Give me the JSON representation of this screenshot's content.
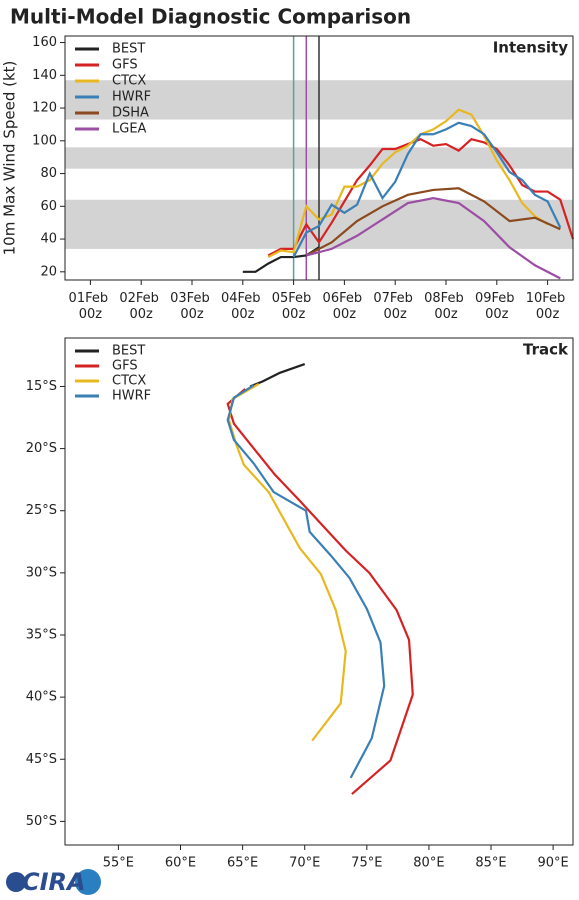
{
  "title": "Multi-Model Diagnostic Comparison",
  "logo": "CIRA",
  "chart_data": [
    {
      "type": "line",
      "panel_label": "Intensity",
      "ylabel": "10m Max Wind Speed (kt)",
      "xlim": [
        "31Jan 12z",
        "10Feb 12z"
      ],
      "xticks": [
        "01Feb 00z",
        "02Feb 00z",
        "03Feb 00z",
        "04Feb 00z",
        "05Feb 00z",
        "06Feb 00z",
        "07Feb 00z",
        "08Feb 00z",
        "09Feb 00z",
        "10Feb 00z"
      ],
      "ylim": [
        15,
        164
      ],
      "yticks": [
        20,
        40,
        60,
        80,
        100,
        120,
        140,
        160
      ],
      "bands": [
        [
          34,
          64
        ],
        [
          83,
          96
        ],
        [
          113,
          137
        ]
      ],
      "band_color": "#d3d3d3",
      "vlines": [
        {
          "x": "05Feb 00z",
          "color": "#5f9ea0"
        },
        {
          "x": "05Feb 06z",
          "color": "#9b4ea3"
        },
        {
          "x": "05Feb 12z",
          "color": "#333333"
        }
      ],
      "legend": "upper left",
      "series": [
        {
          "name": "BEST",
          "color": "#222222",
          "x": [
            "04Feb 00z",
            "04Feb 06z",
            "04Feb 12z",
            "04Feb 18z",
            "05Feb 00z",
            "05Feb 06z",
            "05Feb 12z"
          ],
          "values": [
            20,
            20,
            25,
            29,
            29,
            30,
            35
          ]
        },
        {
          "name": "GFS",
          "color": "#d62222",
          "x": [
            "04Feb 12z",
            "04Feb 18z",
            "05Feb 00z",
            "05Feb 06z",
            "05Feb 12z",
            "05Feb 18z",
            "06Feb 00z",
            "06Feb 06z",
            "06Feb 12z",
            "06Feb 18z",
            "07Feb 00z",
            "07Feb 06z",
            "07Feb 12z",
            "07Feb 18z",
            "08Feb 00z",
            "08Feb 06z",
            "08Feb 12z",
            "08Feb 18z",
            "09Feb 00z",
            "09Feb 06z",
            "09Feb 12z",
            "09Feb 18z",
            "10Feb 00z",
            "10Feb 06z",
            "10Feb 12z"
          ],
          "values": [
            30,
            34,
            34,
            49,
            38,
            50,
            63,
            76,
            85,
            95,
            95,
            98,
            101,
            97,
            98,
            94,
            101,
            99,
            95,
            85,
            73,
            69,
            69,
            64,
            40
          ]
        },
        {
          "name": "CTCX",
          "color": "#e8b820",
          "x": [
            "04Feb 12z",
            "04Feb 18z",
            "05Feb 00z",
            "05Feb 06z",
            "05Feb 12z",
            "05Feb 18z",
            "06Feb 00z",
            "06Feb 06z",
            "06Feb 12z",
            "06Feb 18z",
            "07Feb 00z",
            "07Feb 06z",
            "07Feb 12z",
            "07Feb 18z",
            "08Feb 00z",
            "08Feb 06z",
            "08Feb 12z",
            "08Feb 18z",
            "09Feb 00z",
            "09Feb 06z",
            "09Feb 12z",
            "09Feb 18z",
            "10Feb 00z"
          ],
          "values": [
            29,
            33,
            32,
            60,
            52,
            55,
            72,
            72,
            76,
            86,
            93,
            97,
            104,
            107,
            112,
            119,
            116,
            103,
            88,
            76,
            62,
            54,
            49
          ]
        },
        {
          "name": "HWRF",
          "color": "#3a7fb5",
          "x": [
            "05Feb 00z",
            "05Feb 06z",
            "05Feb 12z",
            "05Feb 18z",
            "06Feb 00z",
            "06Feb 06z",
            "06Feb 12z",
            "06Feb 18z",
            "07Feb 00z",
            "07Feb 06z",
            "07Feb 12z",
            "07Feb 18z",
            "08Feb 00z",
            "08Feb 06z",
            "08Feb 12z",
            "08Feb 18z",
            "09Feb 00z",
            "09Feb 06z",
            "09Feb 12z",
            "09Feb 18z",
            "10Feb 00z",
            "10Feb 06z"
          ],
          "values": [
            29,
            44,
            48,
            61,
            56,
            61,
            80,
            65,
            75,
            92,
            104,
            104,
            107,
            111,
            109,
            104,
            93,
            81,
            76,
            67,
            63,
            47
          ]
        },
        {
          "name": "DSHA",
          "color": "#8b4a1f",
          "x": [
            "05Feb 06z",
            "05Feb 18z",
            "06Feb 06z",
            "06Feb 18z",
            "07Feb 06z",
            "07Feb 18z",
            "08Feb 06z",
            "08Feb 18z",
            "09Feb 06z",
            "09Feb 18z",
            "10Feb 06z"
          ],
          "values": [
            30,
            38,
            51,
            60,
            67,
            70,
            71,
            63,
            51,
            53,
            46
          ]
        },
        {
          "name": "LGEA",
          "color": "#9b4ea3",
          "x": [
            "05Feb 06z",
            "05Feb 18z",
            "06Feb 06z",
            "06Feb 18z",
            "07Feb 06z",
            "07Feb 18z",
            "08Feb 06z",
            "08Feb 18z",
            "09Feb 06z",
            "09Feb 18z",
            "10Feb 06z"
          ],
          "values": [
            30,
            34,
            42,
            52,
            62,
            65,
            62,
            51,
            35,
            24,
            16
          ]
        }
      ]
    },
    {
      "type": "track",
      "panel_label": "Track",
      "xlim": [
        50.7,
        91.6
      ],
      "ylim": [
        -51.9,
        -11.1
      ],
      "xticks": [
        {
          "value": 55,
          "label": "55°E"
        },
        {
          "value": 60,
          "label": "60°E"
        },
        {
          "value": 65,
          "label": "65°E"
        },
        {
          "value": 70,
          "label": "70°E"
        },
        {
          "value": 75,
          "label": "75°E"
        },
        {
          "value": 80,
          "label": "80°E"
        },
        {
          "value": 85,
          "label": "85°E"
        },
        {
          "value": 90,
          "label": "90°E"
        }
      ],
      "yticks": [
        {
          "value": -15,
          "label": "15°S"
        },
        {
          "value": -20,
          "label": "20°S"
        },
        {
          "value": -25,
          "label": "25°S"
        },
        {
          "value": -30,
          "label": "30°S"
        },
        {
          "value": -35,
          "label": "35°S"
        },
        {
          "value": -40,
          "label": "40°S"
        },
        {
          "value": -45,
          "label": "45°S"
        },
        {
          "value": -50,
          "label": "50°S"
        }
      ],
      "legend": "upper left",
      "series": [
        {
          "name": "BEST",
          "color": "#222222",
          "x": [
            70.0,
            68.0,
            66.6,
            65.6
          ],
          "values": [
            -13.2,
            -13.9,
            -14.6,
            -15.0
          ]
        },
        {
          "name": "GFS",
          "color": "#d62222",
          "x": [
            65.2,
            63.8,
            64.3,
            67.6,
            69.6,
            73.3,
            75.2,
            77.4,
            78.4,
            78.7,
            76.9,
            73.8
          ],
          "values": [
            -15.2,
            -16.4,
            -18.0,
            -22.1,
            -24.2,
            -28.2,
            -30.0,
            -33.0,
            -35.4,
            -39.8,
            -45.1,
            -47.8
          ]
        },
        {
          "name": "CTCX",
          "color": "#e8b820",
          "x": [
            66.3,
            64.2,
            63.9,
            64.5,
            65.1,
            67.1,
            69.6,
            71.3,
            72.5,
            73.3,
            72.9,
            70.6
          ],
          "values": [
            -14.8,
            -16.0,
            -17.7,
            -19.7,
            -21.3,
            -23.5,
            -28.0,
            -30.1,
            -33.0,
            -36.3,
            -40.5,
            -43.5
          ]
        },
        {
          "name": "HWRF",
          "color": "#3a7fb5",
          "x": [
            65.9,
            64.3,
            63.8,
            64.3,
            65.9,
            67.5,
            70.1,
            70.4,
            72.1,
            73.6,
            75.0,
            76.1,
            76.4,
            75.4,
            73.7
          ],
          "values": [
            -14.9,
            -15.9,
            -17.7,
            -19.3,
            -21.2,
            -23.5,
            -25.0,
            -26.7,
            -28.6,
            -30.4,
            -32.9,
            -35.6,
            -39.1,
            -43.3,
            -46.5
          ]
        }
      ]
    }
  ]
}
